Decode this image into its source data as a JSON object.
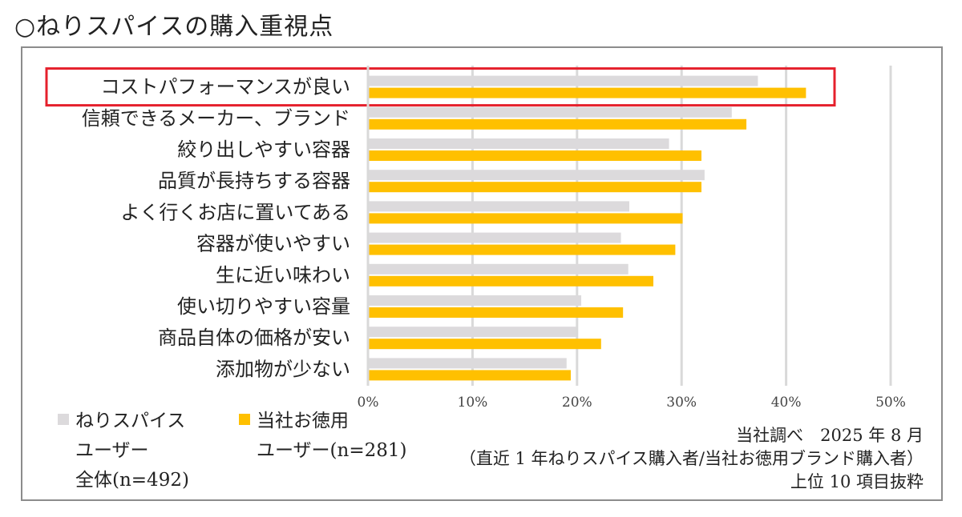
{
  "header": {
    "title": "○ねりスパイスの購入重視点"
  },
  "chart_data": {
    "type": "bar",
    "orientation": "horizontal",
    "categories": [
      "コストパフォーマンスが良い",
      "信頼できるメーカー、ブランド",
      "絞り出しやすい容器",
      "品質が長持ちする容器",
      "よく行くお店に置いてある",
      "容器が使いやすい",
      "生に近い味わい",
      "使い切りやすい容量",
      "商品自体の価格が安い",
      "添加物が少ない"
    ],
    "series": [
      {
        "name": "ねりスパイスユーザー全体(n=492)",
        "legend_lines": [
          "ねりスパイス",
          "ユーザー",
          "全体(n=492)"
        ],
        "color": "#dcdadc",
        "values": [
          37.3,
          34.8,
          28.8,
          32.2,
          25.0,
          24.2,
          24.9,
          20.4,
          19.9,
          19.0
        ]
      },
      {
        "name": "当社お徳用ユーザー(n=281)",
        "legend_lines": [
          "当社お徳用",
          "ユーザー(n=281)"
        ],
        "color": "#ffc000",
        "values": [
          41.9,
          36.2,
          31.9,
          31.9,
          30.1,
          29.4,
          27.3,
          24.4,
          22.3,
          19.4
        ]
      }
    ],
    "x_ticks": [
      "0%",
      "10%",
      "20%",
      "30%",
      "40%",
      "50%"
    ],
    "xlim": [
      0,
      50
    ],
    "grid": true,
    "legend_position": "bottom-left",
    "highlight_category": "コストパフォーマンスが良い",
    "highlight_color": "#e5202c"
  },
  "footnote": {
    "line1": "当社調べ　2025 年 8 月",
    "line2": "（直近 1 年ねりスパイス購入者/当社お徳用ブランド購入者）",
    "line3": "上位 10 項目抜粋"
  }
}
